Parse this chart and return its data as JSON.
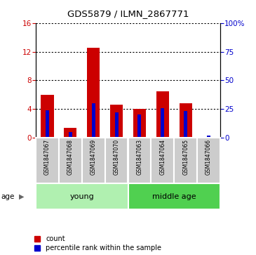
{
  "title": "GDS5879 / ILMN_2867771",
  "samples": [
    "GSM1847067",
    "GSM1847068",
    "GSM1847069",
    "GSM1847070",
    "GSM1847063",
    "GSM1847064",
    "GSM1847065",
    "GSM1847066"
  ],
  "red_values": [
    6.0,
    1.4,
    12.5,
    4.6,
    4.0,
    6.5,
    4.8,
    0.1
  ],
  "blue_values_pct": [
    24,
    5,
    30,
    22,
    20,
    26,
    23,
    2
  ],
  "groups": [
    {
      "label": "young",
      "start": 0,
      "end": 4,
      "color": "#b0f0b0"
    },
    {
      "label": "middle age",
      "start": 4,
      "end": 8,
      "color": "#50d050"
    }
  ],
  "ylim_left": [
    0,
    16
  ],
  "ylim_right": [
    0,
    100
  ],
  "yticks_left": [
    0,
    4,
    8,
    12,
    16
  ],
  "yticks_right": [
    0,
    25,
    50,
    75,
    100
  ],
  "red_color": "#cc0000",
  "blue_color": "#0000cc",
  "grid_color": "#000000",
  "sample_bg_color": "#cccccc",
  "age_label": "age",
  "legend_red": "count",
  "legend_blue": "percentile rank within the sample"
}
